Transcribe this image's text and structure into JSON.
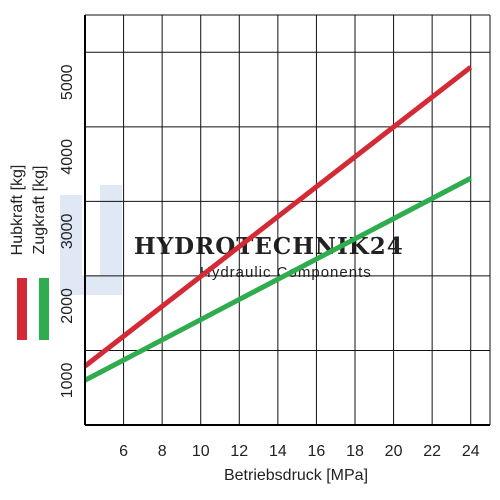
{
  "watermark": {
    "text": "HYDROTECHNIK24",
    "subtext": "Hydraulic Components",
    "color": "#c9d6ec"
  },
  "chart_data": {
    "type": "line",
    "title": "",
    "xlabel": "Betriebsdruck [MPa]",
    "x_ticks": [
      6,
      8,
      10,
      12,
      14,
      16,
      18,
      20,
      22,
      24
    ],
    "y_ticks": [
      1000,
      2000,
      3000,
      4000,
      5000
    ],
    "xlim": [
      4,
      25
    ],
    "ylim": [
      0,
      5500
    ],
    "grid": true,
    "legend_position": "left, vertical",
    "series": [
      {
        "name": "Hubkraft [kg]",
        "color": "#d42a36",
        "x": [
          4,
          24
        ],
        "y": [
          790,
          4800
        ]
      },
      {
        "name": "Zugkraft [kg]",
        "color": "#2fad4e",
        "x": [
          4,
          24
        ],
        "y": [
          600,
          3310
        ]
      }
    ]
  }
}
